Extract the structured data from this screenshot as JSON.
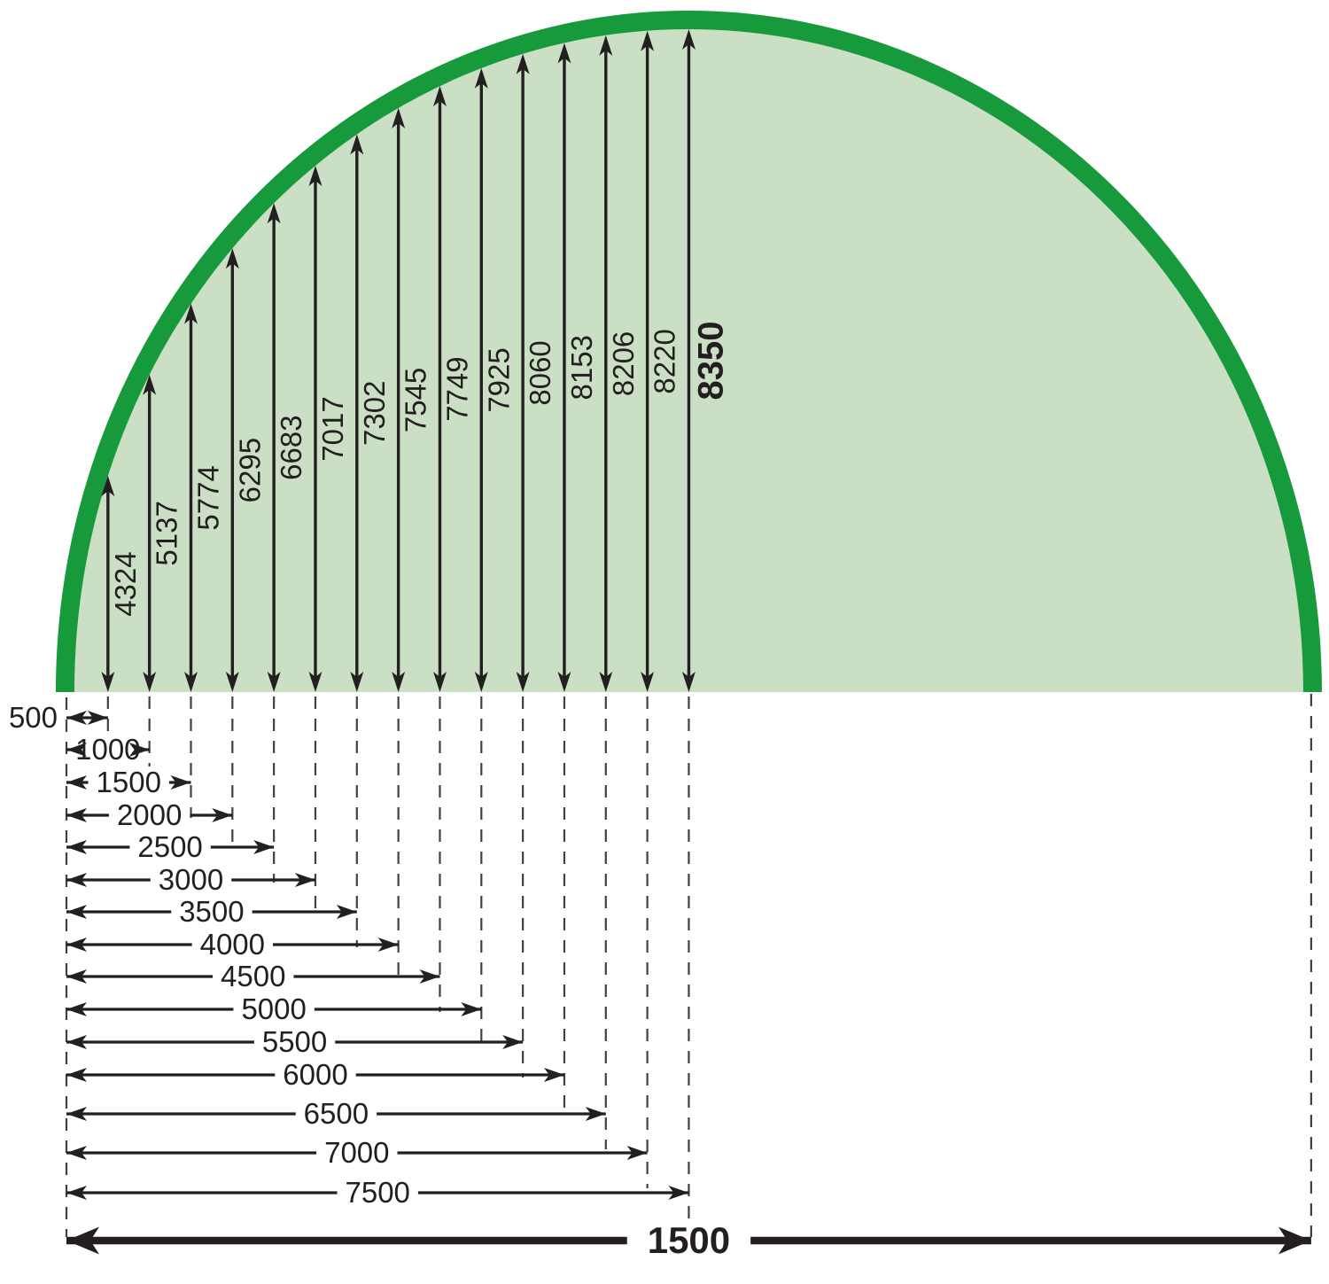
{
  "diagram": {
    "arch_fill_color": "#cbdfc5",
    "arch_stroke_color": "#169a3b",
    "line_color": "#231f20",
    "dash_color": "#414042",
    "height_labels": [
      "4324",
      "5137",
      "5774",
      "6295",
      "6683",
      "7017",
      "7302",
      "7545",
      "7749",
      "7925",
      "8060",
      "8153",
      "8206",
      "8220",
      "8350"
    ],
    "width_labels": [
      "500",
      "1000",
      "1500",
      "2000",
      "2500",
      "3000",
      "3500",
      "4000",
      "4500",
      "5000",
      "5500",
      "6000",
      "6500",
      "7000",
      "7500"
    ],
    "total_width_label": "1500"
  },
  "chart_data": {
    "type": "area",
    "title": "",
    "x": [
      500,
      1000,
      1500,
      2000,
      2500,
      3000,
      3500,
      4000,
      4500,
      5000,
      5500,
      6000,
      6500,
      7000,
      7500
    ],
    "y": [
      4324,
      5137,
      5774,
      6295,
      6683,
      7017,
      7302,
      7545,
      7749,
      7925,
      8060,
      8153,
      8206,
      8220,
      8350
    ],
    "total_width": 1500,
    "max_height": 8350
  }
}
